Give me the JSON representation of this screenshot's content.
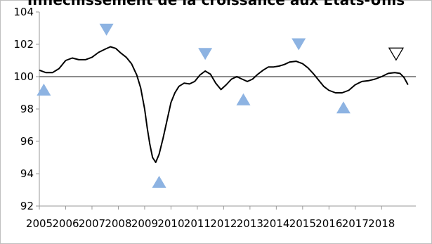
{
  "chart_data": {
    "type": "line",
    "title": "Infléchissement de la croissance aux Etats-Unis",
    "xlabel": "",
    "ylabel": "",
    "xlim": [
      2005,
      2019.3
    ],
    "ylim": [
      92,
      104
    ],
    "y_ticks": [
      "92",
      "94",
      "96",
      "98",
      "100",
      "102",
      "104"
    ],
    "x_ticks": [
      "2005",
      "2006",
      "2007",
      "2008",
      "2009",
      "2010",
      "2011",
      "2012",
      "2013",
      "2014",
      "2015",
      "2016",
      "2017",
      "2018"
    ],
    "reference_line": 100,
    "grid": false,
    "series": [
      {
        "color": "#000000",
        "points": [
          [
            2005.0,
            100.4
          ],
          [
            2005.25,
            100.25
          ],
          [
            2005.5,
            100.25
          ],
          [
            2005.75,
            100.5
          ],
          [
            2006.0,
            101.0
          ],
          [
            2006.25,
            101.15
          ],
          [
            2006.5,
            101.05
          ],
          [
            2006.75,
            101.05
          ],
          [
            2007.0,
            101.2
          ],
          [
            2007.25,
            101.5
          ],
          [
            2007.5,
            101.7
          ],
          [
            2007.7,
            101.85
          ],
          [
            2007.9,
            101.75
          ],
          [
            2008.1,
            101.45
          ],
          [
            2008.3,
            101.2
          ],
          [
            2008.5,
            100.8
          ],
          [
            2008.7,
            100.1
          ],
          [
            2008.85,
            99.3
          ],
          [
            2009.0,
            98.0
          ],
          [
            2009.1,
            96.8
          ],
          [
            2009.2,
            95.8
          ],
          [
            2009.3,
            95.0
          ],
          [
            2009.42,
            94.7
          ],
          [
            2009.55,
            95.2
          ],
          [
            2009.7,
            96.2
          ],
          [
            2009.85,
            97.3
          ],
          [
            2010.0,
            98.4
          ],
          [
            2010.15,
            99.0
          ],
          [
            2010.3,
            99.4
          ],
          [
            2010.5,
            99.6
          ],
          [
            2010.7,
            99.55
          ],
          [
            2010.9,
            99.7
          ],
          [
            2011.1,
            100.1
          ],
          [
            2011.3,
            100.35
          ],
          [
            2011.5,
            100.15
          ],
          [
            2011.7,
            99.6
          ],
          [
            2011.9,
            99.2
          ],
          [
            2012.1,
            99.5
          ],
          [
            2012.3,
            99.85
          ],
          [
            2012.5,
            100.0
          ],
          [
            2012.7,
            99.85
          ],
          [
            2012.9,
            99.7
          ],
          [
            2013.1,
            99.85
          ],
          [
            2013.3,
            100.15
          ],
          [
            2013.5,
            100.4
          ],
          [
            2013.7,
            100.6
          ],
          [
            2013.9,
            100.6
          ],
          [
            2014.1,
            100.65
          ],
          [
            2014.3,
            100.75
          ],
          [
            2014.5,
            100.9
          ],
          [
            2014.75,
            100.95
          ],
          [
            2015.0,
            100.8
          ],
          [
            2015.2,
            100.55
          ],
          [
            2015.4,
            100.2
          ],
          [
            2015.6,
            99.8
          ],
          [
            2015.8,
            99.4
          ],
          [
            2016.0,
            99.15
          ],
          [
            2016.25,
            99.0
          ],
          [
            2016.5,
            99.0
          ],
          [
            2016.75,
            99.15
          ],
          [
            2017.0,
            99.5
          ],
          [
            2017.25,
            99.7
          ],
          [
            2017.5,
            99.75
          ],
          [
            2017.75,
            99.85
          ],
          [
            2018.0,
            100.0
          ],
          [
            2018.25,
            100.2
          ],
          [
            2018.5,
            100.25
          ],
          [
            2018.7,
            100.2
          ],
          [
            2018.85,
            99.95
          ],
          [
            2019.0,
            99.5
          ]
        ]
      }
    ],
    "markers": [
      {
        "kind": "up",
        "x": 2005.17,
        "y": 99.2,
        "fill": "#8db3e2"
      },
      {
        "kind": "down",
        "x": 2007.55,
        "y": 102.9,
        "fill": "#8db3e2"
      },
      {
        "kind": "up",
        "x": 2009.55,
        "y": 93.5,
        "fill": "#8db3e2"
      },
      {
        "kind": "down",
        "x": 2011.3,
        "y": 101.4,
        "fill": "#8db3e2"
      },
      {
        "kind": "up",
        "x": 2012.75,
        "y": 98.6,
        "fill": "#8db3e2"
      },
      {
        "kind": "down",
        "x": 2014.85,
        "y": 102.0,
        "fill": "#8db3e2"
      },
      {
        "kind": "up",
        "x": 2016.55,
        "y": 98.1,
        "fill": "#8db3e2"
      },
      {
        "kind": "down-outline",
        "x": 2018.55,
        "y": 101.4,
        "fill": "#ffffff"
      }
    ]
  }
}
